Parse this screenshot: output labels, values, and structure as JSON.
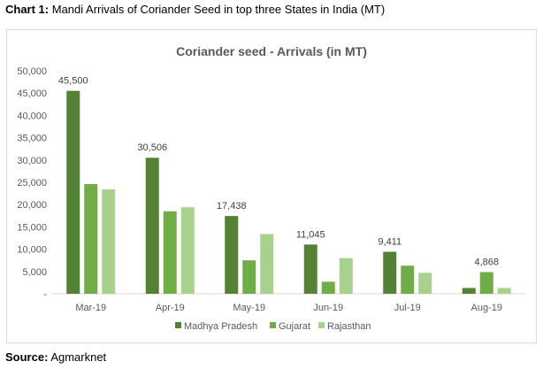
{
  "caption": {
    "label": "Chart 1:",
    "text": "Mandi Arrivals of Coriander Seed in top three States in India (MT)"
  },
  "source": {
    "label": "Source:",
    "text": "Agmarknet"
  },
  "colors": {
    "Madhya Pradesh": "#548235",
    "Gujarat": "#70ad47",
    "Rajasthan": "#a9d18e"
  },
  "chart_data": {
    "type": "bar",
    "title": "Coriander seed - Arrivals (in MT)",
    "xlabel": "",
    "ylabel": "",
    "categories": [
      "Mar-19",
      "Apr-19",
      "May-19",
      "Jun-19",
      "Jul-19",
      "Aug-19"
    ],
    "series": [
      {
        "name": "Madhya Pradesh",
        "values": [
          45500,
          30506,
          17438,
          11045,
          9411,
          1300
        ]
      },
      {
        "name": "Gujarat",
        "values": [
          24600,
          18500,
          7500,
          2700,
          6300,
          4868
        ]
      },
      {
        "name": "Rajasthan",
        "values": [
          23400,
          19400,
          13400,
          8000,
          4700,
          1300
        ]
      }
    ],
    "data_labels": [
      "45,500",
      "30,506",
      "17,438",
      "11,045",
      "9,411",
      "4,868"
    ],
    "ylim": [
      0,
      50000
    ],
    "yticks": [
      0,
      5000,
      10000,
      15000,
      20000,
      25000,
      30000,
      35000,
      40000,
      45000,
      50000
    ],
    "ytick_labels": [
      "-",
      "5,000",
      "10,000",
      "15,000",
      "20,000",
      "25,000",
      "30,000",
      "35,000",
      "40,000",
      "45,000",
      "50,000"
    ],
    "grid": false,
    "legend": "bottom"
  }
}
